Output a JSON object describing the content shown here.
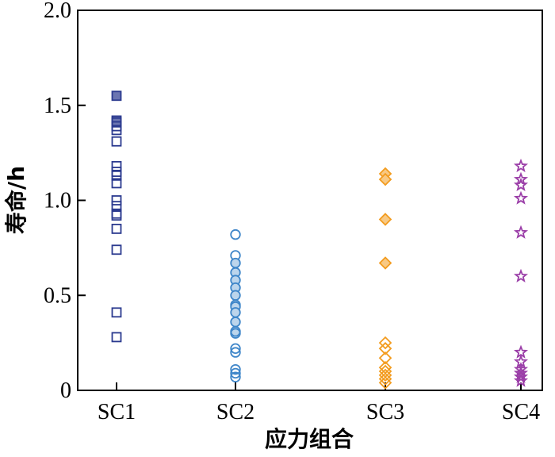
{
  "chart_data": {
    "type": "scatter",
    "xlabel": "应力组合",
    "ylabel": "寿命/h",
    "categories": [
      "SC1",
      "SC2",
      "SC3",
      "SC4"
    ],
    "ylim": [
      0,
      2.0
    ],
    "yticks": [
      "0",
      "0.5",
      "1.0",
      "1.5",
      "2.0"
    ],
    "ytick_values": [
      0,
      0.5,
      1.0,
      1.5,
      2.0
    ],
    "grid": false,
    "series": [
      {
        "category": "SC1",
        "marker": "square",
        "color": "#2b3a8f",
        "values": [
          1.55,
          1.42,
          1.41,
          1.39,
          1.37,
          1.31,
          1.18,
          1.15,
          1.13,
          1.09,
          1.0,
          0.97,
          0.93,
          0.92,
          0.85,
          0.74,
          0.41,
          0.28
        ]
      },
      {
        "category": "SC2",
        "marker": "circle",
        "color": "#3f86c9",
        "values": [
          0.82,
          0.71,
          0.67,
          0.62,
          0.58,
          0.54,
          0.5,
          0.45,
          0.44,
          0.41,
          0.36,
          0.31,
          0.3,
          0.22,
          0.2,
          0.11,
          0.09,
          0.07
        ]
      },
      {
        "category": "SC3",
        "marker": "diamond",
        "color": "#f39c1f",
        "values": [
          1.14,
          1.11,
          0.9,
          0.67,
          0.25,
          0.22,
          0.17,
          0.12,
          0.1,
          0.08,
          0.06,
          0.04
        ]
      },
      {
        "category": "SC4",
        "marker": "star",
        "color": "#9b3fa8",
        "values": [
          1.18,
          1.11,
          1.08,
          1.01,
          0.83,
          0.6,
          0.2,
          0.15,
          0.11,
          0.09,
          0.07,
          0.05
        ]
      }
    ]
  }
}
